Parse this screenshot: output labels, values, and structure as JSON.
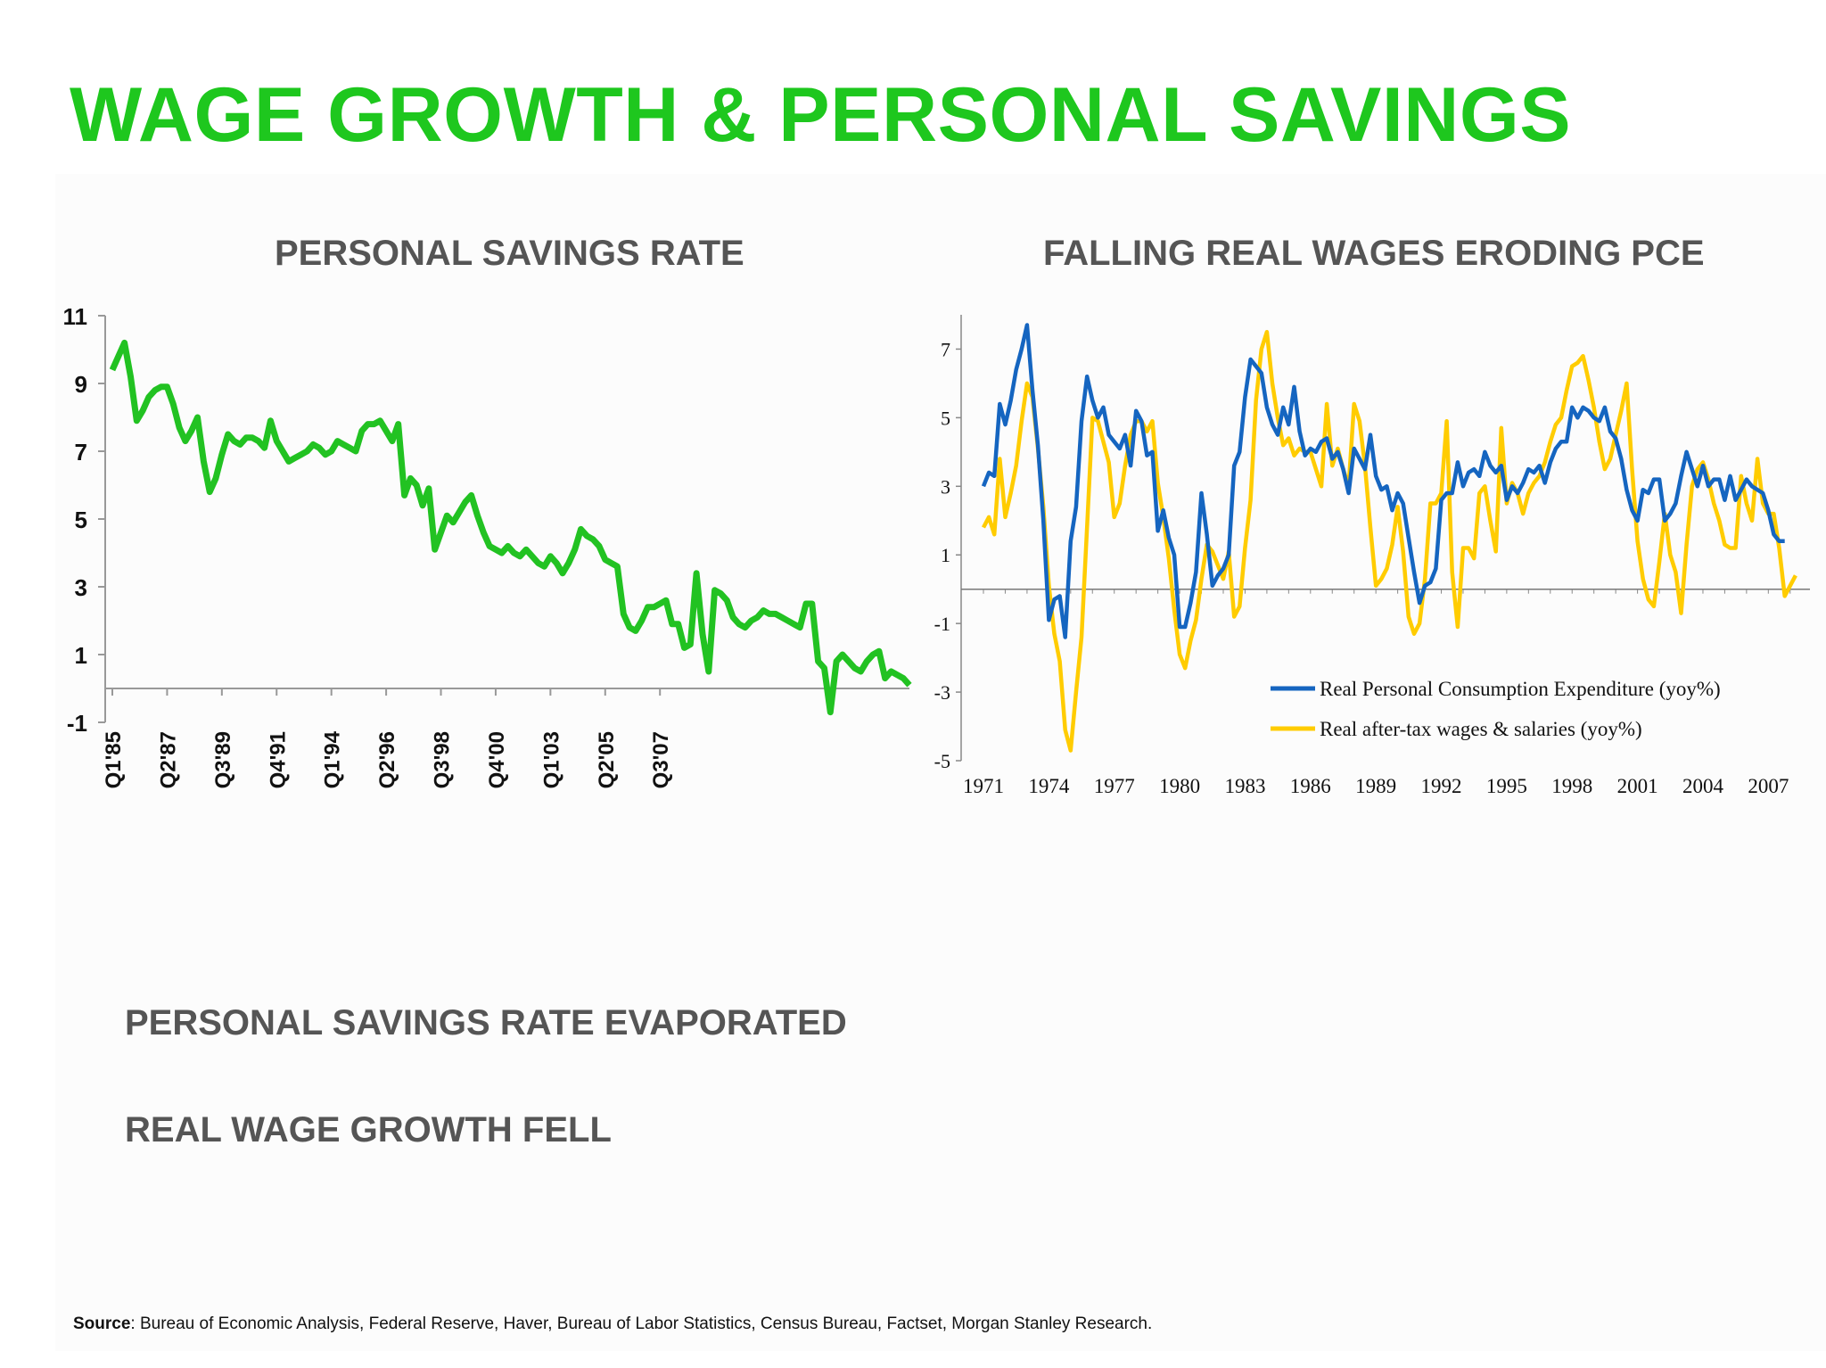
{
  "title": "WAGE GROWTH & PERSONAL SAVINGS",
  "colors": {
    "title": "#1ec71e",
    "savings_line": "#22c222",
    "pce_line": "#1565c0",
    "wages_line": "#ffcc00"
  },
  "bullets": [
    "PERSONAL SAVINGS RATE EVAPORATED",
    "REAL WAGE GROWTH FELL"
  ],
  "source": {
    "label": "Source",
    "text": ": Bureau of Economic Analysis, Federal Reserve, Haver, Bureau of Labor Statistics, Census Bureau, Factset, Morgan Stanley Research."
  },
  "chart_data": [
    {
      "type": "line",
      "title": "PERSONAL SAVINGS RATE",
      "ylim": [
        -1,
        11
      ],
      "yticks": [
        "11",
        "9",
        "7",
        "5",
        "3",
        "1",
        "-1"
      ],
      "xticks": [
        "Q1'85",
        "Q2'87",
        "Q3'89",
        "Q4'91",
        "Q1'94",
        "Q2'96",
        "Q3'98",
        "Q4'00",
        "Q1'03",
        "Q2'05",
        "Q3'07"
      ],
      "x_start": 1985.0,
      "x_step": 0.25,
      "series": [
        {
          "values": [
            9.4,
            9.8,
            10.2,
            9.2,
            7.9,
            8.2,
            8.6,
            8.8,
            8.9,
            8.9,
            8.4,
            7.7,
            7.3,
            7.6,
            8.0,
            6.7,
            5.8,
            6.2,
            6.9,
            7.5,
            7.3,
            7.2,
            7.4,
            7.4,
            7.3,
            7.1,
            7.9,
            7.3,
            7.0,
            6.7,
            6.8,
            6.9,
            7.0,
            7.2,
            7.1,
            6.9,
            7.0,
            7.3,
            7.2,
            7.1,
            7.0,
            7.6,
            7.8,
            7.8,
            7.9,
            7.6,
            7.3,
            7.8,
            5.7,
            6.2,
            6.0,
            5.4,
            5.9,
            4.1,
            4.6,
            5.1,
            4.9,
            5.2,
            5.5,
            5.7,
            5.1,
            4.6,
            4.2,
            4.1,
            4.0,
            4.2,
            4.0,
            3.9,
            4.1,
            3.9,
            3.7,
            3.6,
            3.9,
            3.7,
            3.4,
            3.7,
            4.1,
            4.7,
            4.5,
            4.4,
            4.2,
            3.8,
            3.7,
            3.6,
            2.2,
            1.8,
            1.7,
            2.0,
            2.4,
            2.4,
            2.5,
            2.6,
            1.9,
            1.9,
            1.2,
            1.3,
            3.4,
            1.6,
            0.5,
            2.9,
            2.8,
            2.6,
            2.1,
            1.9,
            1.8,
            2.0,
            2.1,
            2.3,
            2.2,
            2.2,
            2.1,
            2.0,
            1.9,
            1.8,
            2.5,
            2.5,
            0.8,
            0.6,
            -0.7,
            0.8,
            1.0,
            0.8,
            0.6,
            0.5,
            0.8,
            1.0,
            1.1,
            0.3,
            0.5,
            0.4,
            0.3,
            0.1
          ]
        }
      ]
    },
    {
      "type": "line",
      "title": "FALLING REAL WAGES ERODING PCE",
      "ylim": [
        -5,
        8
      ],
      "yticks": [
        "7",
        "5",
        "3",
        "1",
        "-1",
        "-3",
        "-5"
      ],
      "xticks": [
        "1971",
        "1974",
        "1977",
        "1980",
        "1983",
        "1986",
        "1989",
        "1992",
        "1995",
        "1998",
        "2001",
        "2004",
        "2007"
      ],
      "legend": "bottom-right",
      "x_start": 1971.0,
      "x_step": 0.25,
      "series": [
        {
          "name": "Real Personal Consumption Expenditure (yoy%)",
          "values": [
            3.0,
            3.4,
            3.3,
            5.4,
            4.8,
            5.5,
            6.4,
            7.0,
            7.7,
            5.8,
            4.2,
            2.0,
            -0.9,
            -0.3,
            -0.2,
            -1.4,
            1.4,
            2.4,
            4.9,
            6.2,
            5.5,
            5.0,
            5.3,
            4.5,
            4.3,
            4.1,
            4.5,
            3.6,
            5.2,
            4.9,
            3.9,
            4.0,
            1.7,
            2.3,
            1.5,
            1.0,
            -1.1,
            -1.1,
            -0.4,
            0.5,
            2.8,
            1.6,
            0.1,
            0.4,
            0.6,
            1.0,
            3.6,
            4.0,
            5.6,
            6.7,
            6.5,
            6.3,
            5.3,
            4.8,
            4.5,
            5.3,
            4.8,
            5.9,
            4.6,
            3.9,
            4.1,
            4.0,
            4.3,
            4.4,
            3.8,
            4.0,
            3.5,
            2.8,
            4.1,
            3.8,
            3.5,
            4.5,
            3.3,
            2.9,
            3.0,
            2.3,
            2.8,
            2.5,
            1.5,
            0.5,
            -0.4,
            0.1,
            0.2,
            0.6,
            2.6,
            2.8,
            2.8,
            3.7,
            3.0,
            3.4,
            3.5,
            3.3,
            4.0,
            3.6,
            3.4,
            3.6,
            2.6,
            3.0,
            2.8,
            3.1,
            3.5,
            3.4,
            3.6,
            3.1,
            3.7,
            4.1,
            4.3,
            4.3,
            5.3,
            5.0,
            5.3,
            5.2,
            5.0,
            4.9,
            5.3,
            4.6,
            4.4,
            3.8,
            2.9,
            2.3,
            2.0,
            2.9,
            2.8,
            3.2,
            3.2,
            2.0,
            2.2,
            2.5,
            3.3,
            4.0,
            3.5,
            3.0,
            3.6,
            3.0,
            3.2,
            3.2,
            2.6,
            3.3,
            2.6,
            2.9,
            3.2,
            3.0,
            2.9,
            2.8,
            2.3,
            1.6,
            1.4,
            1.4
          ]
        },
        {
          "name": "Real after-tax wages & salaries (yoy%)",
          "values": [
            1.8,
            2.1,
            1.6,
            3.8,
            2.1,
            2.8,
            3.6,
            4.9,
            6.0,
            5.6,
            4.1,
            2.4,
            0.1,
            -1.3,
            -2.1,
            -4.1,
            -4.7,
            -3.0,
            -1.4,
            1.8,
            5.0,
            4.9,
            4.3,
            3.7,
            2.1,
            2.5,
            3.6,
            4.5,
            4.9,
            4.9,
            4.6,
            4.9,
            3.1,
            2.1,
            0.9,
            -0.6,
            -1.9,
            -2.3,
            -1.5,
            -0.9,
            0.3,
            1.3,
            1.1,
            0.7,
            0.3,
            1.1,
            -0.8,
            -0.5,
            1.2,
            2.6,
            5.5,
            7.0,
            7.5,
            6.0,
            5.0,
            4.2,
            4.4,
            3.9,
            4.1,
            4.0,
            4.0,
            3.5,
            3.0,
            5.4,
            3.6,
            4.1,
            3.5,
            3.0,
            5.4,
            4.9,
            3.6,
            1.8,
            0.1,
            0.3,
            0.6,
            1.3,
            2.4,
            1.1,
            -0.8,
            -1.3,
            -1.0,
            0.3,
            2.5,
            2.5,
            2.8,
            4.9,
            0.5,
            -1.1,
            1.2,
            1.2,
            0.9,
            2.8,
            3.0,
            2.0,
            1.1,
            4.7,
            2.5,
            3.1,
            2.8,
            2.2,
            2.8,
            3.1,
            3.3,
            3.7,
            4.3,
            4.8,
            5.0,
            5.8,
            6.5,
            6.6,
            6.8,
            6.1,
            5.3,
            4.3,
            3.5,
            3.8,
            4.5,
            5.2,
            6.0,
            3.5,
            1.4,
            0.3,
            -0.3,
            -0.5,
            0.8,
            2.2,
            1.0,
            0.5,
            -0.7,
            1.3,
            3.0,
            3.5,
            3.7,
            3.2,
            2.5,
            2.0,
            1.3,
            1.2,
            1.2,
            3.3,
            2.5,
            2.0,
            3.8,
            2.5,
            2.2,
            2.2,
            1.2,
            -0.2,
            0.1,
            0.4
          ]
        }
      ]
    }
  ]
}
